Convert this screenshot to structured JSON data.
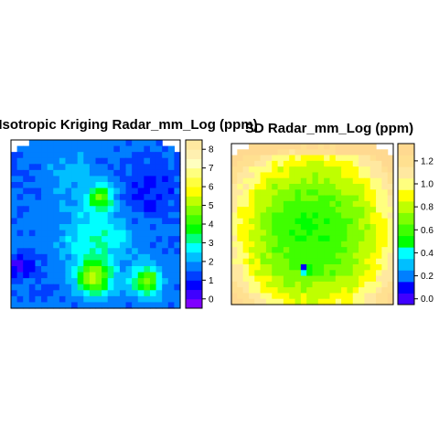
{
  "chart_data": [
    {
      "type": "heatmap",
      "title": "Isotropic Kriging Radar_mm_Log (ppm)",
      "colorbar": {
        "ticks": [
          "0",
          "1",
          "2",
          "3",
          "4",
          "5",
          "6",
          "7",
          "8"
        ],
        "range": [
          -0.5,
          8.5
        ],
        "breaks": [
          -0.5,
          0,
          0.5,
          1,
          1.5,
          2,
          2.5,
          3,
          3.5,
          4,
          4.5,
          5,
          5.5,
          6,
          6.5,
          7,
          7.5,
          8,
          8.5
        ],
        "colors": [
          "#7F00FF",
          "#3F00FF",
          "#0000FF",
          "#003FFF",
          "#007FFF",
          "#00BFFF",
          "#00FFFF",
          "#00FF7F",
          "#00FF00",
          "#3FFF00",
          "#7FFF00",
          "#BFFF00",
          "#FFFF00",
          "#FFFF3F",
          "#FFFF7F",
          "#FFFFBF",
          "#FFF0B0",
          "#FFE8A0"
        ]
      },
      "nrows": 28,
      "ncols": 28,
      "missing_regions": "top-left and top-right corners",
      "summary": "Low values (about 1-2 ppm, blue) across most of the field; higher values (4-6 ppm, green/cyan) in a north-south band with peaks in the lower centre and lower right."
    },
    {
      "type": "heatmap",
      "title": "SD Radar_mm_Log (ppm)",
      "colorbar": {
        "ticks": [
          "0.0",
          "0.2",
          "0.4",
          "0.6",
          "0.8",
          "1.0",
          "1.2"
        ],
        "range": [
          -0.05,
          1.35
        ],
        "breaks": [
          -0.05,
          0.05,
          0.15,
          0.25,
          0.35,
          0.45,
          0.55,
          0.65,
          0.75,
          0.85,
          0.95,
          1.05,
          1.15,
          1.25,
          1.35
        ],
        "colors": [
          "#3F00FF",
          "#0000FF",
          "#007FFF",
          "#00BFFF",
          "#00FFFF",
          "#00FF00",
          "#3FFF00",
          "#7FFF00",
          "#BFFF00",
          "#FFFF00",
          "#FFFF7F",
          "#FFE8A0",
          "#FFE090",
          "#FFD990"
        ]
      },
      "nrows": 28,
      "ncols": 28,
      "missing_regions": "top-left and top-right corners",
      "summary": "Standard deviation about 0.5-0.7 ppm (green) in the centre, rising to about 1.0-1.2 ppm (yellow/tan) toward the edges; near 0 at a sample point in the lower centre."
    }
  ]
}
